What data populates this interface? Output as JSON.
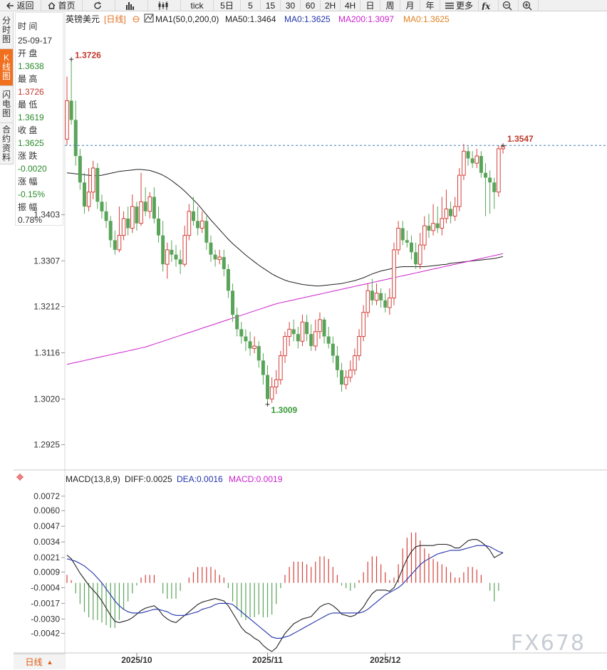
{
  "toolbar": {
    "items": [
      {
        "label": "返回",
        "icon": "back-arrow-icon"
      },
      {
        "label": "首页",
        "icon": "home-icon"
      },
      {
        "label": "",
        "icon": "refresh-icon"
      },
      {
        "label": "",
        "icon": "bar-chart-icon"
      },
      {
        "label": "",
        "icon": "candlestick-icon"
      },
      {
        "label": "tick",
        "icon": ""
      },
      {
        "label": "5日",
        "icon": ""
      },
      {
        "label": "5",
        "icon": ""
      },
      {
        "label": "15",
        "icon": ""
      },
      {
        "label": "30",
        "icon": ""
      },
      {
        "label": "60",
        "icon": ""
      },
      {
        "label": "2H",
        "icon": ""
      },
      {
        "label": "4H",
        "icon": ""
      },
      {
        "label": "日",
        "icon": ""
      },
      {
        "label": "周",
        "icon": ""
      },
      {
        "label": "月",
        "icon": ""
      },
      {
        "label": "年",
        "icon": ""
      },
      {
        "label": "更多",
        "icon": "menu-icon"
      },
      {
        "label": "",
        "icon": "fx-icon"
      },
      {
        "label": "",
        "icon": "zoom-out-icon"
      },
      {
        "label": "",
        "icon": "zoom-in-icon"
      }
    ]
  },
  "side_tabs": [
    {
      "label": "分时图",
      "active": false
    },
    {
      "label": "K线图",
      "active": true
    },
    {
      "label": "闪电图",
      "active": false
    },
    {
      "label": "合约资料",
      "active": false
    }
  ],
  "info_panel": {
    "time_label": "时 间",
    "time": "25-09-17",
    "open_label": "开 盘",
    "open": "1.3638",
    "high_label": "最 高",
    "high": "1.3726",
    "low_label": "最 低",
    "low": "1.3619",
    "close_label": "收 盘",
    "close": "1.3625",
    "change_label": "涨 跌",
    "change": "-0.0020",
    "pct_label": "涨 幅",
    "pct": "-0.15%",
    "amp_label": "振 幅",
    "amp": "0.78%"
  },
  "legend": {
    "symbol": "英镑美元",
    "period": "[日线]",
    "ma_set": "MA1(50,0,200,0)",
    "ma50": "MA50:1.3464",
    "ma0a": "MA0:1.3625",
    "ma200": "MA200:1.3097",
    "ma0b": "MA0:1.3625"
  },
  "macd_legend": {
    "title": "MACD(13,8,9)",
    "diff": "DIFF:0.0025",
    "dea": "DEA:0.0016",
    "macd": "MACD:0.0019"
  },
  "bottom_bar": {
    "label": "日线"
  },
  "watermark": "FX678",
  "colors": {
    "up": "#d4403a",
    "down": "#5aa45a",
    "ma50": "#222222",
    "ma200": "#cc22cc",
    "dea": "#2233aa",
    "accent": "#f07020"
  },
  "chart_data": {
    "type": "candlestick",
    "price_axis": {
      "ylim": [
        1.288,
        1.379
      ],
      "ticks": [
        "1.3403",
        "1.3307",
        "1.3212",
        "1.3116",
        "1.3020",
        "1.2925"
      ]
    },
    "x_labels": [
      {
        "label": "2025/10",
        "index": 16
      },
      {
        "label": "2025/11",
        "index": 46
      },
      {
        "label": "2025/12",
        "index": 73
      }
    ],
    "max_label": {
      "text": "1.3726",
      "index": 1,
      "value": 1.3726
    },
    "min_label": {
      "text": "1.3009",
      "index": 46,
      "value": 1.3009
    },
    "last_label": {
      "text": "1.3547",
      "index": 100,
      "value": 1.3547
    },
    "candles": [
      [
        1.356,
        1.364,
        1.369,
        1.3548
      ],
      [
        1.364,
        1.36,
        1.3726,
        1.359
      ],
      [
        1.36,
        1.3525,
        1.364,
        1.3505
      ],
      [
        1.3525,
        1.347,
        1.354,
        1.3455
      ],
      [
        1.347,
        1.342,
        1.349,
        1.3405
      ],
      [
        1.342,
        1.345,
        1.35,
        1.341
      ],
      [
        1.345,
        1.35,
        1.3515,
        1.3435
      ],
      [
        1.35,
        1.343,
        1.351,
        1.3415
      ],
      [
        1.343,
        1.341,
        1.3445,
        1.3395
      ],
      [
        1.341,
        1.339,
        1.343,
        1.3375
      ],
      [
        1.339,
        1.335,
        1.34,
        1.3335
      ],
      [
        1.335,
        1.333,
        1.337,
        1.332
      ],
      [
        1.333,
        1.336,
        1.342,
        1.3325
      ],
      [
        1.336,
        1.3395,
        1.341,
        1.335
      ],
      [
        1.3395,
        1.3375,
        1.342,
        1.336
      ],
      [
        1.3375,
        1.342,
        1.3445,
        1.3365
      ],
      [
        1.342,
        1.3385,
        1.343,
        1.337
      ],
      [
        1.3385,
        1.343,
        1.349,
        1.338
      ],
      [
        1.343,
        1.341,
        1.346,
        1.34
      ],
      [
        1.341,
        1.344,
        1.345,
        1.3395
      ],
      [
        1.344,
        1.3395,
        1.346,
        1.3385
      ],
      [
        1.3395,
        1.336,
        1.342,
        1.3345
      ],
      [
        1.336,
        1.33,
        1.339,
        1.3285
      ],
      [
        1.33,
        1.333,
        1.3345,
        1.327
      ],
      [
        1.333,
        1.332,
        1.335,
        1.3305
      ],
      [
        1.332,
        1.331,
        1.334,
        1.3295
      ],
      [
        1.331,
        1.33,
        1.333,
        1.328
      ],
      [
        1.33,
        1.336,
        1.338,
        1.3295
      ],
      [
        1.336,
        1.341,
        1.3425,
        1.335
      ],
      [
        1.341,
        1.339,
        1.344,
        1.338
      ],
      [
        1.339,
        1.3375,
        1.342,
        1.336
      ],
      [
        1.3375,
        1.339,
        1.341,
        1.3365
      ],
      [
        1.339,
        1.3345,
        1.34,
        1.333
      ],
      [
        1.3345,
        1.332,
        1.336,
        1.3305
      ],
      [
        1.332,
        1.331,
        1.333,
        1.3295
      ],
      [
        1.331,
        1.3315,
        1.333,
        1.33
      ],
      [
        1.3315,
        1.329,
        1.333,
        1.3275
      ],
      [
        1.329,
        1.3245,
        1.33,
        1.323
      ],
      [
        1.3245,
        1.3195,
        1.326,
        1.318
      ],
      [
        1.3195,
        1.3165,
        1.321,
        1.315
      ],
      [
        1.3165,
        1.315,
        1.318,
        1.3135
      ],
      [
        1.315,
        1.314,
        1.3165,
        1.312
      ],
      [
        1.314,
        1.3125,
        1.316,
        1.311
      ],
      [
        1.3125,
        1.313,
        1.315,
        1.3115
      ],
      [
        1.313,
        1.31,
        1.314,
        1.3085
      ],
      [
        1.31,
        1.307,
        1.3115,
        1.305
      ],
      [
        1.307,
        1.302,
        1.309,
        1.3009
      ],
      [
        1.302,
        1.3045,
        1.3065,
        1.3012
      ],
      [
        1.3045,
        1.306,
        1.308,
        1.303
      ],
      [
        1.306,
        1.311,
        1.312,
        1.305
      ],
      [
        1.311,
        1.315,
        1.316,
        1.3095
      ],
      [
        1.315,
        1.3165,
        1.318,
        1.313
      ],
      [
        1.3165,
        1.3155,
        1.3185,
        1.314
      ],
      [
        1.3155,
        1.314,
        1.317,
        1.3125
      ],
      [
        1.314,
        1.318,
        1.3195,
        1.313
      ],
      [
        1.318,
        1.3155,
        1.3195,
        1.314
      ],
      [
        1.3155,
        1.313,
        1.3175,
        1.312
      ],
      [
        1.313,
        1.316,
        1.3185,
        1.312
      ],
      [
        1.316,
        1.3185,
        1.32,
        1.3145
      ],
      [
        1.3185,
        1.315,
        1.319,
        1.3135
      ],
      [
        1.315,
        1.3135,
        1.317,
        1.3125
      ],
      [
        1.3135,
        1.311,
        1.315,
        1.3095
      ],
      [
        1.311,
        1.308,
        1.313,
        1.3065
      ],
      [
        1.308,
        1.305,
        1.3095,
        1.3035
      ],
      [
        1.305,
        1.3065,
        1.308,
        1.304
      ],
      [
        1.3065,
        1.308,
        1.31,
        1.3055
      ],
      [
        1.308,
        1.311,
        1.3125,
        1.307
      ],
      [
        1.311,
        1.315,
        1.3165,
        1.31
      ],
      [
        1.315,
        1.32,
        1.3215,
        1.314
      ],
      [
        1.32,
        1.3245,
        1.326,
        1.319
      ],
      [
        1.3245,
        1.3225,
        1.327,
        1.3215
      ],
      [
        1.3225,
        1.324,
        1.326,
        1.3215
      ],
      [
        1.324,
        1.3225,
        1.325,
        1.321
      ],
      [
        1.3225,
        1.321,
        1.324,
        1.32
      ],
      [
        1.321,
        1.323,
        1.325,
        1.3195
      ],
      [
        1.323,
        1.333,
        1.3345,
        1.3215
      ],
      [
        1.333,
        1.3375,
        1.339,
        1.332
      ],
      [
        1.3375,
        1.335,
        1.339,
        1.334
      ],
      [
        1.335,
        1.3345,
        1.337,
        1.3335
      ],
      [
        1.3345,
        1.3325,
        1.336,
        1.331
      ],
      [
        1.3325,
        1.33,
        1.3345,
        1.329
      ],
      [
        1.33,
        1.334,
        1.3365,
        1.329
      ],
      [
        1.334,
        1.338,
        1.34,
        1.333
      ],
      [
        1.338,
        1.337,
        1.3405,
        1.3355
      ],
      [
        1.337,
        1.3385,
        1.3425,
        1.336
      ],
      [
        1.3385,
        1.3375,
        1.342,
        1.3365
      ],
      [
        1.3375,
        1.3395,
        1.344,
        1.336
      ],
      [
        1.3395,
        1.3415,
        1.3455,
        1.3385
      ],
      [
        1.3415,
        1.34,
        1.343,
        1.3385
      ],
      [
        1.34,
        1.342,
        1.344,
        1.339
      ],
      [
        1.342,
        1.3485,
        1.35,
        1.341
      ],
      [
        1.3485,
        1.3535,
        1.355,
        1.3475
      ],
      [
        1.3535,
        1.352,
        1.3545,
        1.3505
      ],
      [
        1.352,
        1.351,
        1.3535,
        1.35
      ],
      [
        1.351,
        1.3525,
        1.354,
        1.35
      ],
      [
        1.3525,
        1.349,
        1.3535,
        1.348
      ],
      [
        1.349,
        1.348,
        1.351,
        1.34
      ],
      [
        1.348,
        1.347,
        1.3495,
        1.3405
      ],
      [
        1.347,
        1.345,
        1.348,
        1.3415
      ],
      [
        1.345,
        1.354,
        1.3547,
        1.344
      ],
      [
        1.354,
        1.3545,
        1.3547,
        1.353
      ]
    ],
    "ma50": [
      1.349,
      1.3489,
      1.3488,
      1.3487,
      1.3486,
      1.3485,
      1.3484,
      1.3484,
      1.3485,
      1.3487,
      1.3489,
      1.3491,
      1.3493,
      1.3494,
      1.3495,
      1.3496,
      1.3497,
      1.3497,
      1.3496,
      1.3495,
      1.3492,
      1.3489,
      1.3485,
      1.348,
      1.3474,
      1.3467,
      1.346,
      1.3452,
      1.3443,
      1.3434,
      1.3425,
      1.3414,
      1.3403,
      1.3392,
      1.3382,
      1.3372,
      1.3362,
      1.3352,
      1.3343,
      1.3335,
      1.3327,
      1.3319,
      1.3312,
      1.3305,
      1.3298,
      1.3292,
      1.3286,
      1.328,
      1.3275,
      1.3271,
      1.3267,
      1.3264,
      1.3262,
      1.326,
      1.3258,
      1.3257,
      1.3256,
      1.3255,
      1.3255,
      1.3256,
      1.3257,
      1.3258,
      1.3259,
      1.326,
      1.3262,
      1.3264,
      1.3266,
      1.3269,
      1.3272,
      1.3276,
      1.328,
      1.3283,
      1.3286,
      1.3288,
      1.329,
      1.3292,
      1.3294,
      1.3295,
      1.3295,
      1.3295,
      1.3295,
      1.3295,
      1.3295,
      1.3296,
      1.3297,
      1.3298,
      1.3299,
      1.33,
      1.3302,
      1.3303,
      1.3304,
      1.3305,
      1.3306,
      1.3307,
      1.3308,
      1.3309,
      1.331,
      1.3311,
      1.3312,
      1.3314,
      1.3316
    ],
    "ma200": [
      1.3092,
      1.3094,
      1.3096,
      1.3098,
      1.31,
      1.3102,
      1.3104,
      1.3106,
      1.3108,
      1.311,
      1.3112,
      1.3114,
      1.3116,
      1.3118,
      1.312,
      1.3122,
      1.3124,
      1.3126,
      1.3128,
      1.3131,
      1.3134,
      1.3137,
      1.314,
      1.3143,
      1.3146,
      1.3149,
      1.3152,
      1.3155,
      1.3158,
      1.3161,
      1.3164,
      1.3167,
      1.317,
      1.3173,
      1.3176,
      1.3179,
      1.3182,
      1.3185,
      1.3188,
      1.3191,
      1.3194,
      1.3197,
      1.32,
      1.3203,
      1.3206,
      1.3209,
      1.3212,
      1.3215,
      1.3218,
      1.322,
      1.3222,
      1.3224,
      1.3226,
      1.3228,
      1.323,
      1.3232,
      1.3234,
      1.3236,
      1.3238,
      1.324,
      1.3242,
      1.3244,
      1.3246,
      1.3248,
      1.325,
      1.3252,
      1.3254,
      1.3256,
      1.3258,
      1.326,
      1.3262,
      1.3264,
      1.3266,
      1.3268,
      1.327,
      1.3272,
      1.3274,
      1.3276,
      1.3278,
      1.328,
      1.3282,
      1.3284,
      1.3286,
      1.3288,
      1.329,
      1.3292,
      1.3294,
      1.3296,
      1.3298,
      1.33,
      1.3302,
      1.3304,
      1.3306,
      1.3308,
      1.331,
      1.3312,
      1.3314,
      1.3316,
      1.3318,
      1.332,
      1.3322
    ],
    "macd_axis": {
      "ylim": [
        -0.0057,
        0.0079
      ],
      "ticks": [
        "0.0072",
        "0.0060",
        "0.0047",
        "0.0034",
        "0.0021",
        "0.0009",
        "-0.0004",
        "-0.0017",
        "-0.0030",
        "-0.0042"
      ]
    },
    "diff": [
      0.0023,
      0.002,
      0.0014,
      0.0008,
      0.0003,
      -0.0002,
      -0.0006,
      -0.001,
      -0.0015,
      -0.0021,
      -0.0027,
      -0.0032,
      -0.0033,
      -0.0032,
      -0.0031,
      -0.0029,
      -0.0026,
      -0.0023,
      -0.0021,
      -0.002,
      -0.0019,
      -0.0022,
      -0.0027,
      -0.003,
      -0.0032,
      -0.0033,
      -0.003,
      -0.0027,
      -0.0024,
      -0.0021,
      -0.0018,
      -0.0016,
      -0.0015,
      -0.0014,
      -0.0013,
      -0.0014,
      -0.0015,
      -0.0019,
      -0.0025,
      -0.0031,
      -0.0037,
      -0.0041,
      -0.0043,
      -0.0046,
      -0.0048,
      -0.0052,
      -0.0055,
      -0.0057,
      -0.0054,
      -0.0048,
      -0.0042,
      -0.0038,
      -0.0034,
      -0.0032,
      -0.003,
      -0.0029,
      -0.0028,
      -0.0024,
      -0.002,
      -0.0018,
      -0.0017,
      -0.0019,
      -0.0022,
      -0.0026,
      -0.0027,
      -0.0028,
      -0.0027,
      -0.0024,
      -0.002,
      -0.0014,
      -0.0009,
      -0.0006,
      -0.0006,
      -0.0006,
      -0.0007,
      -0.0004,
      0.0003,
      0.0012,
      0.002,
      0.0026,
      0.003,
      0.0031,
      0.0031,
      0.0031,
      0.0031,
      0.0032,
      0.0032,
      0.0032,
      0.0031,
      0.0029,
      0.0029,
      0.0032,
      0.0035,
      0.0036,
      0.0036,
      0.0034,
      0.0031,
      0.0027,
      0.0021,
      0.0023,
      0.0025
    ],
    "dea": [
      0.002,
      0.0019,
      0.0018,
      0.0016,
      0.0014,
      0.0011,
      0.0008,
      0.0004,
      0.0,
      -0.0005,
      -0.001,
      -0.0015,
      -0.0019,
      -0.0022,
      -0.0024,
      -0.0025,
      -0.0025,
      -0.0025,
      -0.0024,
      -0.0023,
      -0.0022,
      -0.0022,
      -0.0023,
      -0.0024,
      -0.0026,
      -0.0027,
      -0.0027,
      -0.0027,
      -0.0026,
      -0.0025,
      -0.0024,
      -0.0022,
      -0.0021,
      -0.002,
      -0.0018,
      -0.0017,
      -0.0017,
      -0.0017,
      -0.0018,
      -0.0021,
      -0.0024,
      -0.0027,
      -0.003,
      -0.0033,
      -0.0036,
      -0.0039,
      -0.0042,
      -0.0045,
      -0.0046,
      -0.0046,
      -0.0045,
      -0.0044,
      -0.0042,
      -0.004,
      -0.0038,
      -0.0036,
      -0.0034,
      -0.0032,
      -0.003,
      -0.0028,
      -0.0026,
      -0.0025,
      -0.0025,
      -0.0025,
      -0.0025,
      -0.0025,
      -0.0025,
      -0.0025,
      -0.0024,
      -0.0022,
      -0.0019,
      -0.0016,
      -0.0013,
      -0.001,
      -0.0008,
      -0.0006,
      -0.0004,
      -0.0001,
      0.0003,
      0.0007,
      0.0011,
      0.0015,
      0.0018,
      0.002,
      0.0022,
      0.0024,
      0.0025,
      0.0026,
      0.0027,
      0.0027,
      0.0027,
      0.0028,
      0.0029,
      0.003,
      0.0031,
      0.0031,
      0.0031,
      0.003,
      0.0028,
      0.0026,
      0.0025
    ]
  }
}
